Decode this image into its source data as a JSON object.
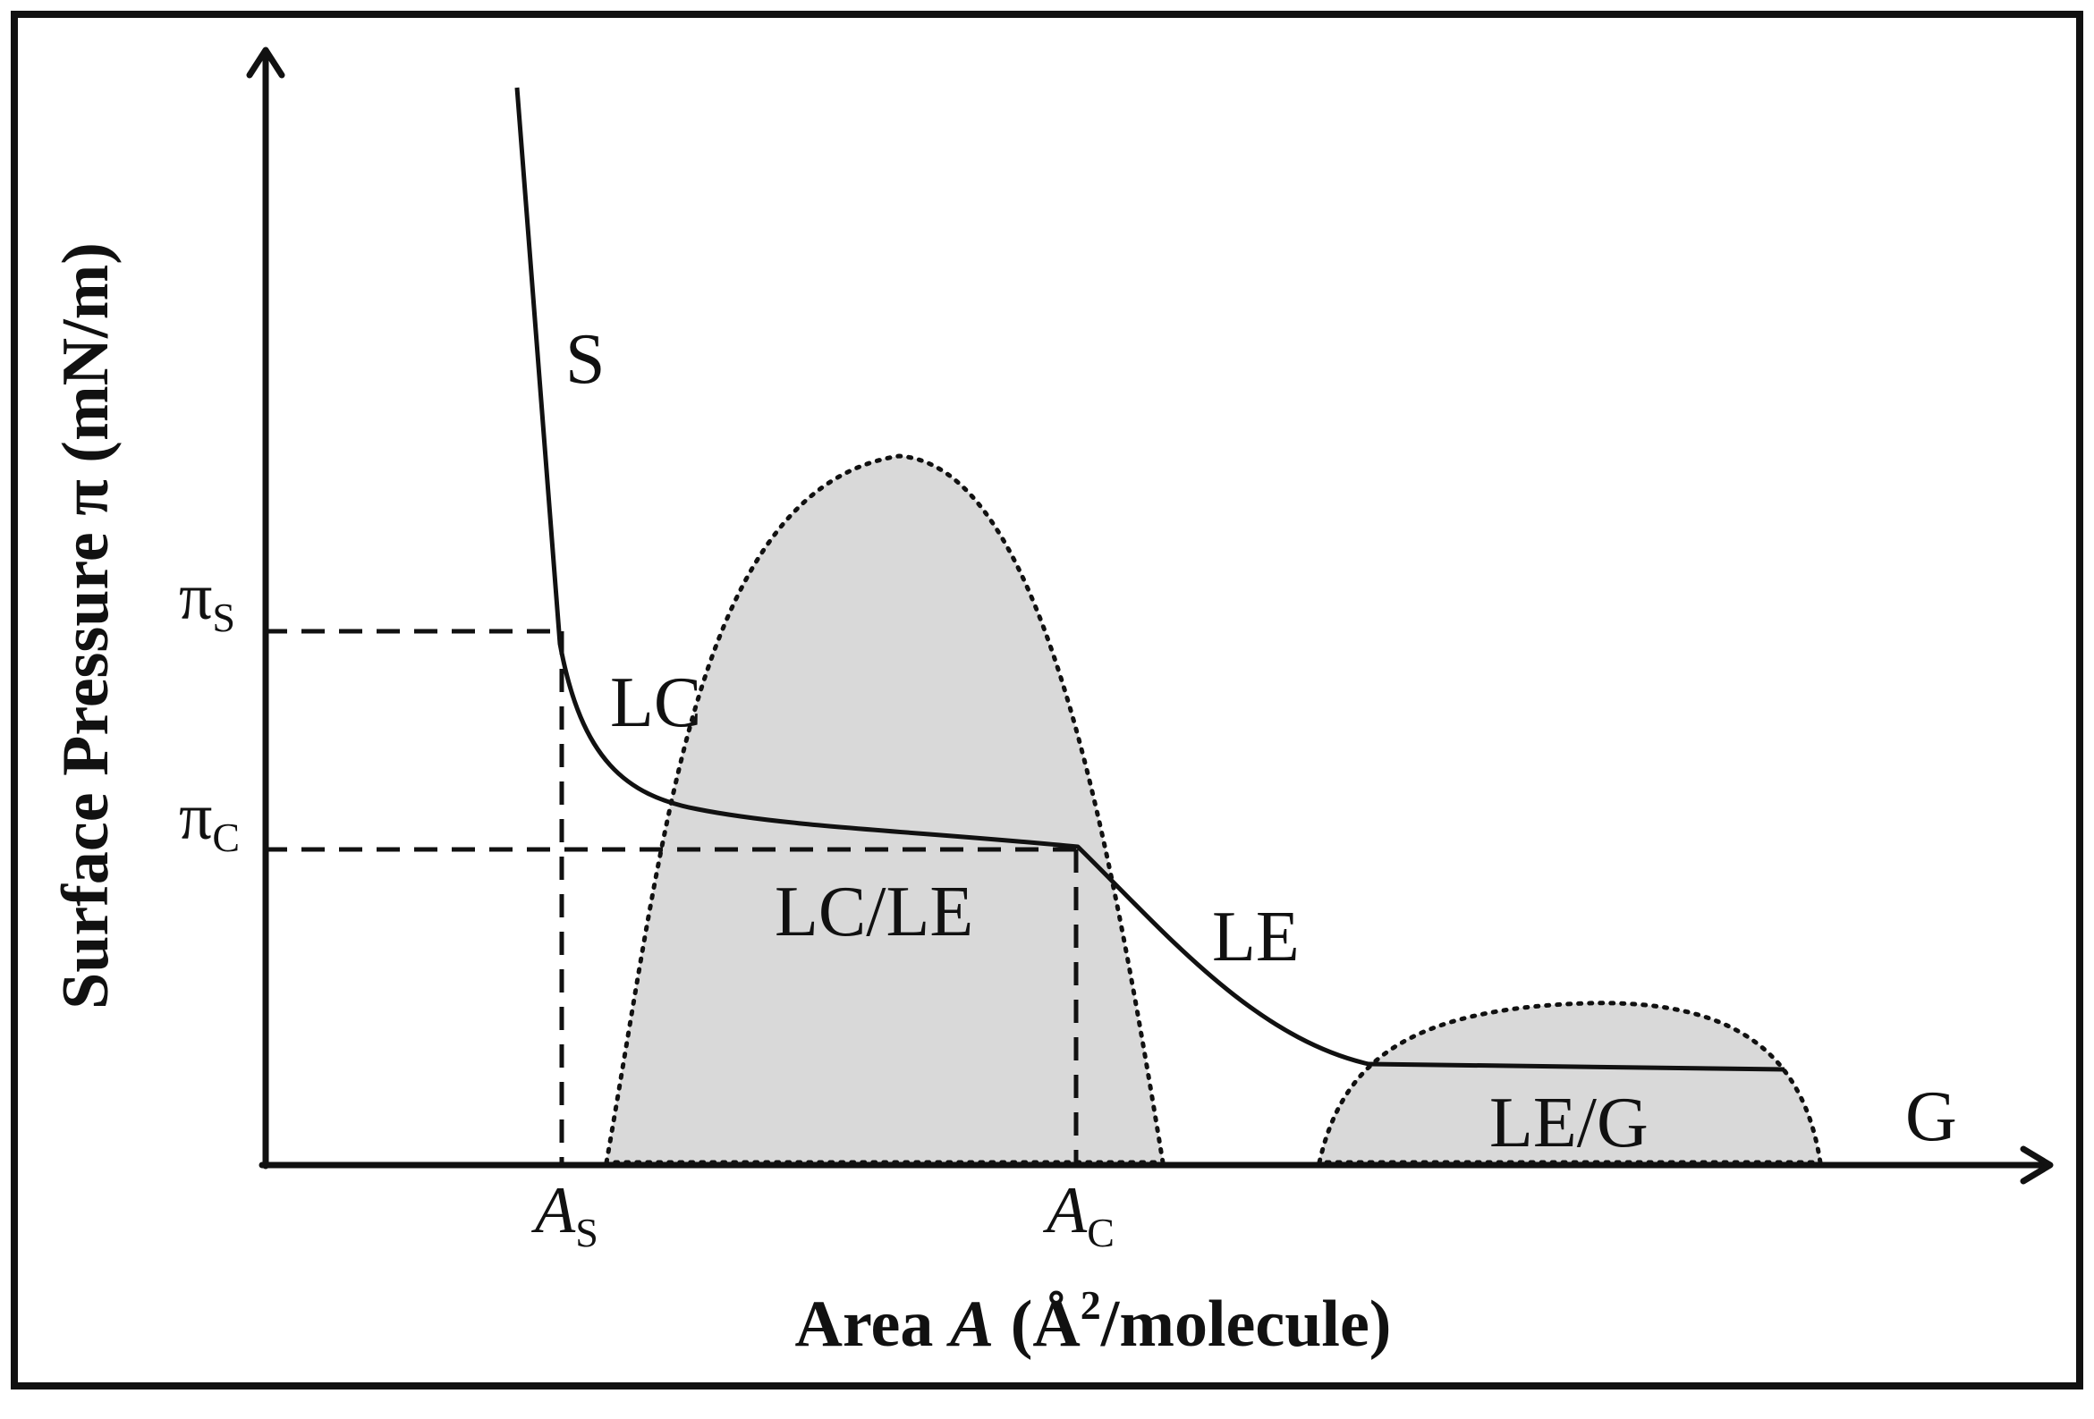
{
  "diagram": {
    "y_axis_title": {
      "text": "Surface Pressure π (mN/m)"
    },
    "x_axis_title": {
      "prefix": "Area ",
      "variable": "A",
      "unit_open": " (Å",
      "unit_power": "2",
      "unit_close": "/molecule)"
    },
    "x_ticks": [
      {
        "main": "A",
        "sub": "S"
      },
      {
        "main": "A",
        "sub": "C"
      }
    ],
    "y_ticks": [
      {
        "main": "π",
        "sub": "S"
      },
      {
        "main": "π",
        "sub": "C"
      }
    ],
    "phase_labels": {
      "solid": "S",
      "liquid_condensed": "LC",
      "coexistence_lc_le": "LC/LE",
      "liquid_expanded": "LE",
      "coexistence_le_g": "LE/G",
      "gas": "G"
    },
    "colors": {
      "line": "#111111",
      "coexistence_fill": "#d9d9d9",
      "background": "#ffffff"
    }
  }
}
